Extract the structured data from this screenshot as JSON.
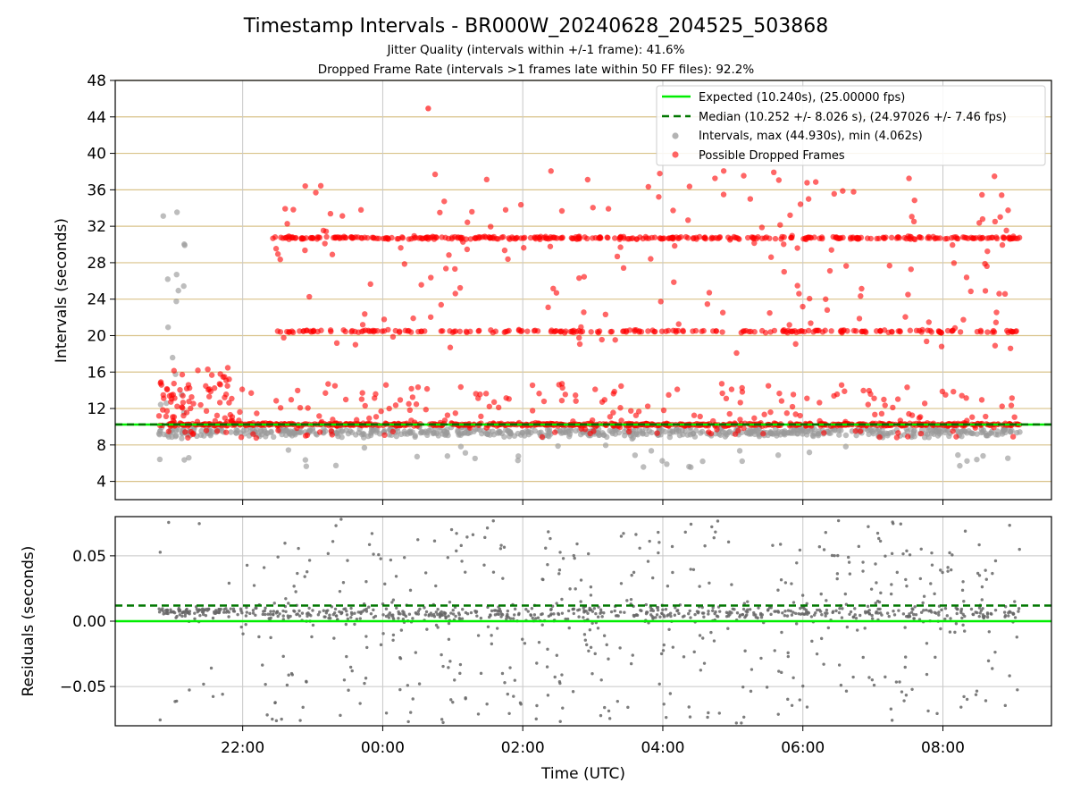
{
  "figure": {
    "title": "Timestamp Intervals - BR000W_20240628_204525_503868",
    "subtitle_1": "Jitter Quality (intervals within +/-1 frame): 41.6%",
    "subtitle_2": "Dropped Frame Rate (intervals >1 frames late within 50 FF files): 92.2%"
  },
  "colors": {
    "expected": "#00ee00",
    "median": "#007700",
    "intervals": "#999999",
    "dropped": "#ff0000",
    "hgrid": "#d9c38a",
    "vgrid": "#c8c8c8",
    "residual": "#666666"
  },
  "chart_data": [
    {
      "type": "scatter",
      "panel": "top",
      "ylabel": "Intervals (seconds)",
      "ylim": [
        2,
        48
      ],
      "yticks": [
        4,
        8,
        12,
        16,
        20,
        24,
        28,
        32,
        36,
        40,
        44,
        48
      ],
      "xlim_hours": [
        20.18,
        33.55
      ],
      "xticks": [
        "22:00",
        "00:00",
        "02:00",
        "04:00",
        "06:00",
        "08:00"
      ],
      "xtick_hours": [
        22,
        24,
        26,
        28,
        30,
        32
      ],
      "grid": true,
      "legend_position": "top-right",
      "legend": [
        "Expected (10.240s), (25.00000 fps)",
        "Median (10.252 +/- 8.026 s), (24.97026 +/- 7.46 fps)",
        "Intervals, max (44.930s), min (4.062s)",
        "Possible Dropped Frames"
      ],
      "expected_interval": 10.24,
      "median_interval": 10.252,
      "interval_max": 44.93,
      "interval_min": 4.062,
      "dropped_bands": [
        {
          "level": 10.24,
          "t_start": 20.8,
          "t_end": 33.1,
          "share": 0.55
        },
        {
          "level": 20.48,
          "t_start": 22.5,
          "t_end": 33.1,
          "share": 0.18
        },
        {
          "level": 30.72,
          "t_start": 22.4,
          "t_end": 33.1,
          "share": 0.27
        }
      ],
      "early_cluster": {
        "t_start": 20.8,
        "t_end": 22.0,
        "y_min": 10.5,
        "y_max": 16.5
      },
      "normal_band": {
        "t_start": 20.8,
        "t_end": 33.1,
        "y_min": 4.1,
        "y_max": 10.3
      }
    },
    {
      "type": "scatter",
      "panel": "bottom",
      "ylabel": "Residuals (seconds)",
      "xlabel": "Time (UTC)",
      "ylim": [
        -0.08,
        0.08
      ],
      "yticks": [
        0.05,
        0.0,
        -0.05
      ],
      "ytick_labels": [
        "0.05",
        "0.00",
        "−0.05"
      ],
      "xlim_hours": [
        20.18,
        33.55
      ],
      "xticks": [
        "22:00",
        "00:00",
        "02:00",
        "04:00",
        "06:00",
        "08:00"
      ],
      "xtick_hours": [
        22,
        24,
        26,
        28,
        30,
        32
      ],
      "grid": true,
      "expected_residual": 0.0,
      "median_residual": 0.012,
      "t_start": 20.8,
      "t_end": 33.1
    }
  ]
}
